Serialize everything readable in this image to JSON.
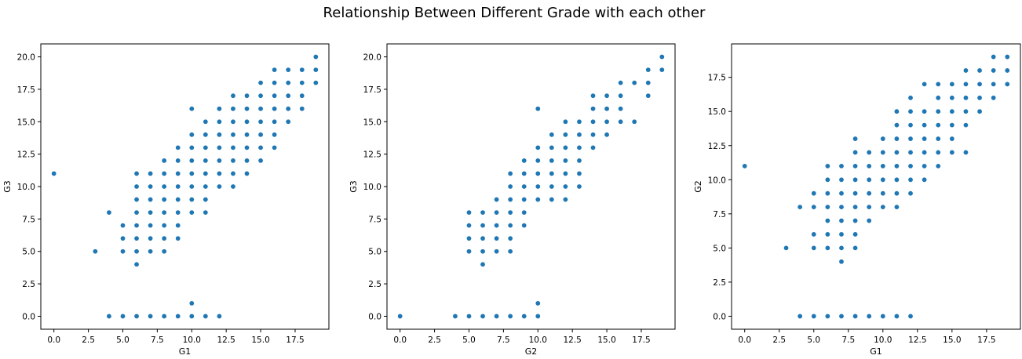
{
  "figure": {
    "title": "Relationship Between Different Grade with each other",
    "marker_color": "#1f77b4"
  },
  "chart_data": [
    {
      "type": "scatter",
      "xlabel": "G1",
      "ylabel": "G3",
      "xlim": [
        -0.95,
        19.95
      ],
      "ylim": [
        -1,
        21
      ],
      "xticks": [
        0.0,
        2.5,
        5.0,
        7.5,
        10.0,
        12.5,
        15.0,
        17.5
      ],
      "yticks": [
        0.0,
        2.5,
        5.0,
        7.5,
        10.0,
        12.5,
        15.0,
        17.5,
        20.0
      ],
      "points": [
        [
          0,
          11
        ],
        [
          3,
          5
        ],
        [
          4,
          8
        ],
        [
          4,
          0
        ],
        [
          5,
          7
        ],
        [
          5,
          6
        ],
        [
          5,
          5
        ],
        [
          5,
          0
        ],
        [
          6,
          11
        ],
        [
          6,
          10
        ],
        [
          6,
          9
        ],
        [
          6,
          8
        ],
        [
          6,
          7
        ],
        [
          6,
          6
        ],
        [
          6,
          5
        ],
        [
          6,
          4
        ],
        [
          6,
          0
        ],
        [
          7,
          11
        ],
        [
          7,
          10
        ],
        [
          7,
          9
        ],
        [
          7,
          8
        ],
        [
          7,
          7
        ],
        [
          7,
          6
        ],
        [
          7,
          5
        ],
        [
          7,
          0
        ],
        [
          8,
          12
        ],
        [
          8,
          11
        ],
        [
          8,
          10
        ],
        [
          8,
          9
        ],
        [
          8,
          8
        ],
        [
          8,
          7
        ],
        [
          8,
          6
        ],
        [
          8,
          5
        ],
        [
          8,
          0
        ],
        [
          9,
          13
        ],
        [
          9,
          12
        ],
        [
          9,
          11
        ],
        [
          9,
          10
        ],
        [
          9,
          9
        ],
        [
          9,
          8
        ],
        [
          9,
          7
        ],
        [
          9,
          6
        ],
        [
          9,
          0
        ],
        [
          10,
          16
        ],
        [
          10,
          14
        ],
        [
          10,
          13
        ],
        [
          10,
          12
        ],
        [
          10,
          11
        ],
        [
          10,
          10
        ],
        [
          10,
          9
        ],
        [
          10,
          8
        ],
        [
          10,
          1
        ],
        [
          10,
          0
        ],
        [
          11,
          15
        ],
        [
          11,
          14
        ],
        [
          11,
          13
        ],
        [
          11,
          12
        ],
        [
          11,
          11
        ],
        [
          11,
          10
        ],
        [
          11,
          9
        ],
        [
          11,
          8
        ],
        [
          11,
          0
        ],
        [
          12,
          16
        ],
        [
          12,
          15
        ],
        [
          12,
          14
        ],
        [
          12,
          13
        ],
        [
          12,
          12
        ],
        [
          12,
          11
        ],
        [
          12,
          10
        ],
        [
          12,
          0
        ],
        [
          13,
          17
        ],
        [
          13,
          16
        ],
        [
          13,
          15
        ],
        [
          13,
          14
        ],
        [
          13,
          13
        ],
        [
          13,
          12
        ],
        [
          13,
          11
        ],
        [
          13,
          10
        ],
        [
          14,
          17
        ],
        [
          14,
          16
        ],
        [
          14,
          15
        ],
        [
          14,
          14
        ],
        [
          14,
          13
        ],
        [
          14,
          12
        ],
        [
          14,
          11
        ],
        [
          15,
          18
        ],
        [
          15,
          17
        ],
        [
          15,
          16
        ],
        [
          15,
          15
        ],
        [
          15,
          14
        ],
        [
          15,
          13
        ],
        [
          15,
          12
        ],
        [
          16,
          19
        ],
        [
          16,
          18
        ],
        [
          16,
          17
        ],
        [
          16,
          16
        ],
        [
          16,
          15
        ],
        [
          16,
          14
        ],
        [
          16,
          13
        ],
        [
          17,
          19
        ],
        [
          17,
          18
        ],
        [
          17,
          17
        ],
        [
          17,
          16
        ],
        [
          17,
          15
        ],
        [
          18,
          19
        ],
        [
          18,
          18
        ],
        [
          18,
          17
        ],
        [
          18,
          16
        ],
        [
          19,
          20
        ],
        [
          19,
          19
        ],
        [
          19,
          18
        ]
      ]
    },
    {
      "type": "scatter",
      "xlabel": "G2",
      "ylabel": "G3",
      "xlim": [
        -0.95,
        19.95
      ],
      "ylim": [
        -1,
        21
      ],
      "xticks": [
        0.0,
        2.5,
        5.0,
        7.5,
        10.0,
        12.5,
        15.0,
        17.5
      ],
      "yticks": [
        0.0,
        2.5,
        5.0,
        7.5,
        10.0,
        12.5,
        15.0,
        17.5,
        20.0
      ],
      "points": [
        [
          0,
          0
        ],
        [
          4,
          0
        ],
        [
          5,
          8
        ],
        [
          5,
          7
        ],
        [
          5,
          6
        ],
        [
          5,
          5
        ],
        [
          5,
          0
        ],
        [
          6,
          8
        ],
        [
          6,
          7
        ],
        [
          6,
          6
        ],
        [
          6,
          5
        ],
        [
          6,
          4
        ],
        [
          6,
          0
        ],
        [
          7,
          9
        ],
        [
          7,
          8
        ],
        [
          7,
          7
        ],
        [
          7,
          6
        ],
        [
          7,
          5
        ],
        [
          7,
          0
        ],
        [
          8,
          11
        ],
        [
          8,
          10
        ],
        [
          8,
          9
        ],
        [
          8,
          8
        ],
        [
          8,
          7
        ],
        [
          8,
          6
        ],
        [
          8,
          5
        ],
        [
          8,
          0
        ],
        [
          9,
          12
        ],
        [
          9,
          11
        ],
        [
          9,
          10
        ],
        [
          9,
          9
        ],
        [
          9,
          8
        ],
        [
          9,
          7
        ],
        [
          9,
          0
        ],
        [
          10,
          16
        ],
        [
          10,
          13
        ],
        [
          10,
          12
        ],
        [
          10,
          11
        ],
        [
          10,
          10
        ],
        [
          10,
          9
        ],
        [
          10,
          1
        ],
        [
          10,
          0
        ],
        [
          11,
          14
        ],
        [
          11,
          13
        ],
        [
          11,
          12
        ],
        [
          11,
          11
        ],
        [
          11,
          10
        ],
        [
          11,
          9
        ],
        [
          12,
          15
        ],
        [
          12,
          14
        ],
        [
          12,
          13
        ],
        [
          12,
          12
        ],
        [
          12,
          11
        ],
        [
          12,
          10
        ],
        [
          12,
          9
        ],
        [
          13,
          15
        ],
        [
          13,
          14
        ],
        [
          13,
          13
        ],
        [
          13,
          12
        ],
        [
          13,
          11
        ],
        [
          13,
          10
        ],
        [
          14,
          17
        ],
        [
          14,
          16
        ],
        [
          14,
          15
        ],
        [
          14,
          14
        ],
        [
          14,
          13
        ],
        [
          15,
          17
        ],
        [
          15,
          16
        ],
        [
          15,
          15
        ],
        [
          15,
          14
        ],
        [
          16,
          18
        ],
        [
          16,
          17
        ],
        [
          16,
          16
        ],
        [
          16,
          15
        ],
        [
          17,
          18
        ],
        [
          17,
          15
        ],
        [
          18,
          19
        ],
        [
          18,
          18
        ],
        [
          18,
          17
        ],
        [
          19,
          20
        ],
        [
          19,
          19
        ]
      ]
    },
    {
      "type": "scatter",
      "xlabel": "G1",
      "ylabel": "G2",
      "xlim": [
        -0.95,
        19.95
      ],
      "ylim": [
        -0.95,
        19.95
      ],
      "xticks": [
        0.0,
        2.5,
        5.0,
        7.5,
        10.0,
        12.5,
        15.0,
        17.5
      ],
      "yticks": [
        0.0,
        2.5,
        5.0,
        7.5,
        10.0,
        12.5,
        15.0,
        17.5
      ],
      "points": [
        [
          0,
          11
        ],
        [
          3,
          5
        ],
        [
          4,
          8
        ],
        [
          4,
          0
        ],
        [
          5,
          9
        ],
        [
          5,
          8
        ],
        [
          5,
          6
        ],
        [
          5,
          5
        ],
        [
          5,
          0
        ],
        [
          6,
          11
        ],
        [
          6,
          10
        ],
        [
          6,
          9
        ],
        [
          6,
          8
        ],
        [
          6,
          7
        ],
        [
          6,
          6
        ],
        [
          6,
          5
        ],
        [
          6,
          0
        ],
        [
          7,
          11
        ],
        [
          7,
          10
        ],
        [
          7,
          9
        ],
        [
          7,
          8
        ],
        [
          7,
          7
        ],
        [
          7,
          6
        ],
        [
          7,
          5
        ],
        [
          7,
          4
        ],
        [
          7,
          0
        ],
        [
          8,
          13
        ],
        [
          8,
          12
        ],
        [
          8,
          11
        ],
        [
          8,
          10
        ],
        [
          8,
          9
        ],
        [
          8,
          8
        ],
        [
          8,
          7
        ],
        [
          8,
          6
        ],
        [
          8,
          5
        ],
        [
          8,
          0
        ],
        [
          9,
          12
        ],
        [
          9,
          11
        ],
        [
          9,
          10
        ],
        [
          9,
          9
        ],
        [
          9,
          8
        ],
        [
          9,
          7
        ],
        [
          9,
          0
        ],
        [
          10,
          13
        ],
        [
          10,
          12
        ],
        [
          10,
          11
        ],
        [
          10,
          10
        ],
        [
          10,
          9
        ],
        [
          10,
          8
        ],
        [
          10,
          0
        ],
        [
          11,
          15
        ],
        [
          11,
          14
        ],
        [
          11,
          13
        ],
        [
          11,
          12
        ],
        [
          11,
          11
        ],
        [
          11,
          10
        ],
        [
          11,
          9
        ],
        [
          11,
          8
        ],
        [
          11,
          0
        ],
        [
          12,
          16
        ],
        [
          12,
          15
        ],
        [
          12,
          14
        ],
        [
          12,
          13
        ],
        [
          12,
          12
        ],
        [
          12,
          11
        ],
        [
          12,
          10
        ],
        [
          12,
          9
        ],
        [
          12,
          0
        ],
        [
          13,
          17
        ],
        [
          13,
          15
        ],
        [
          13,
          14
        ],
        [
          13,
          13
        ],
        [
          13,
          12
        ],
        [
          13,
          11
        ],
        [
          13,
          10
        ],
        [
          14,
          17
        ],
        [
          14,
          16
        ],
        [
          14,
          15
        ],
        [
          14,
          14
        ],
        [
          14,
          13
        ],
        [
          14,
          12
        ],
        [
          14,
          11
        ],
        [
          15,
          17
        ],
        [
          15,
          16
        ],
        [
          15,
          15
        ],
        [
          15,
          14
        ],
        [
          15,
          13
        ],
        [
          15,
          12
        ],
        [
          16,
          18
        ],
        [
          16,
          17
        ],
        [
          16,
          16
        ],
        [
          16,
          15
        ],
        [
          16,
          14
        ],
        [
          16,
          12
        ],
        [
          17,
          18
        ],
        [
          17,
          17
        ],
        [
          17,
          16
        ],
        [
          17,
          15
        ],
        [
          18,
          19
        ],
        [
          18,
          18
        ],
        [
          18,
          17
        ],
        [
          18,
          16
        ],
        [
          19,
          19
        ],
        [
          19,
          18
        ],
        [
          19,
          17
        ]
      ]
    }
  ]
}
